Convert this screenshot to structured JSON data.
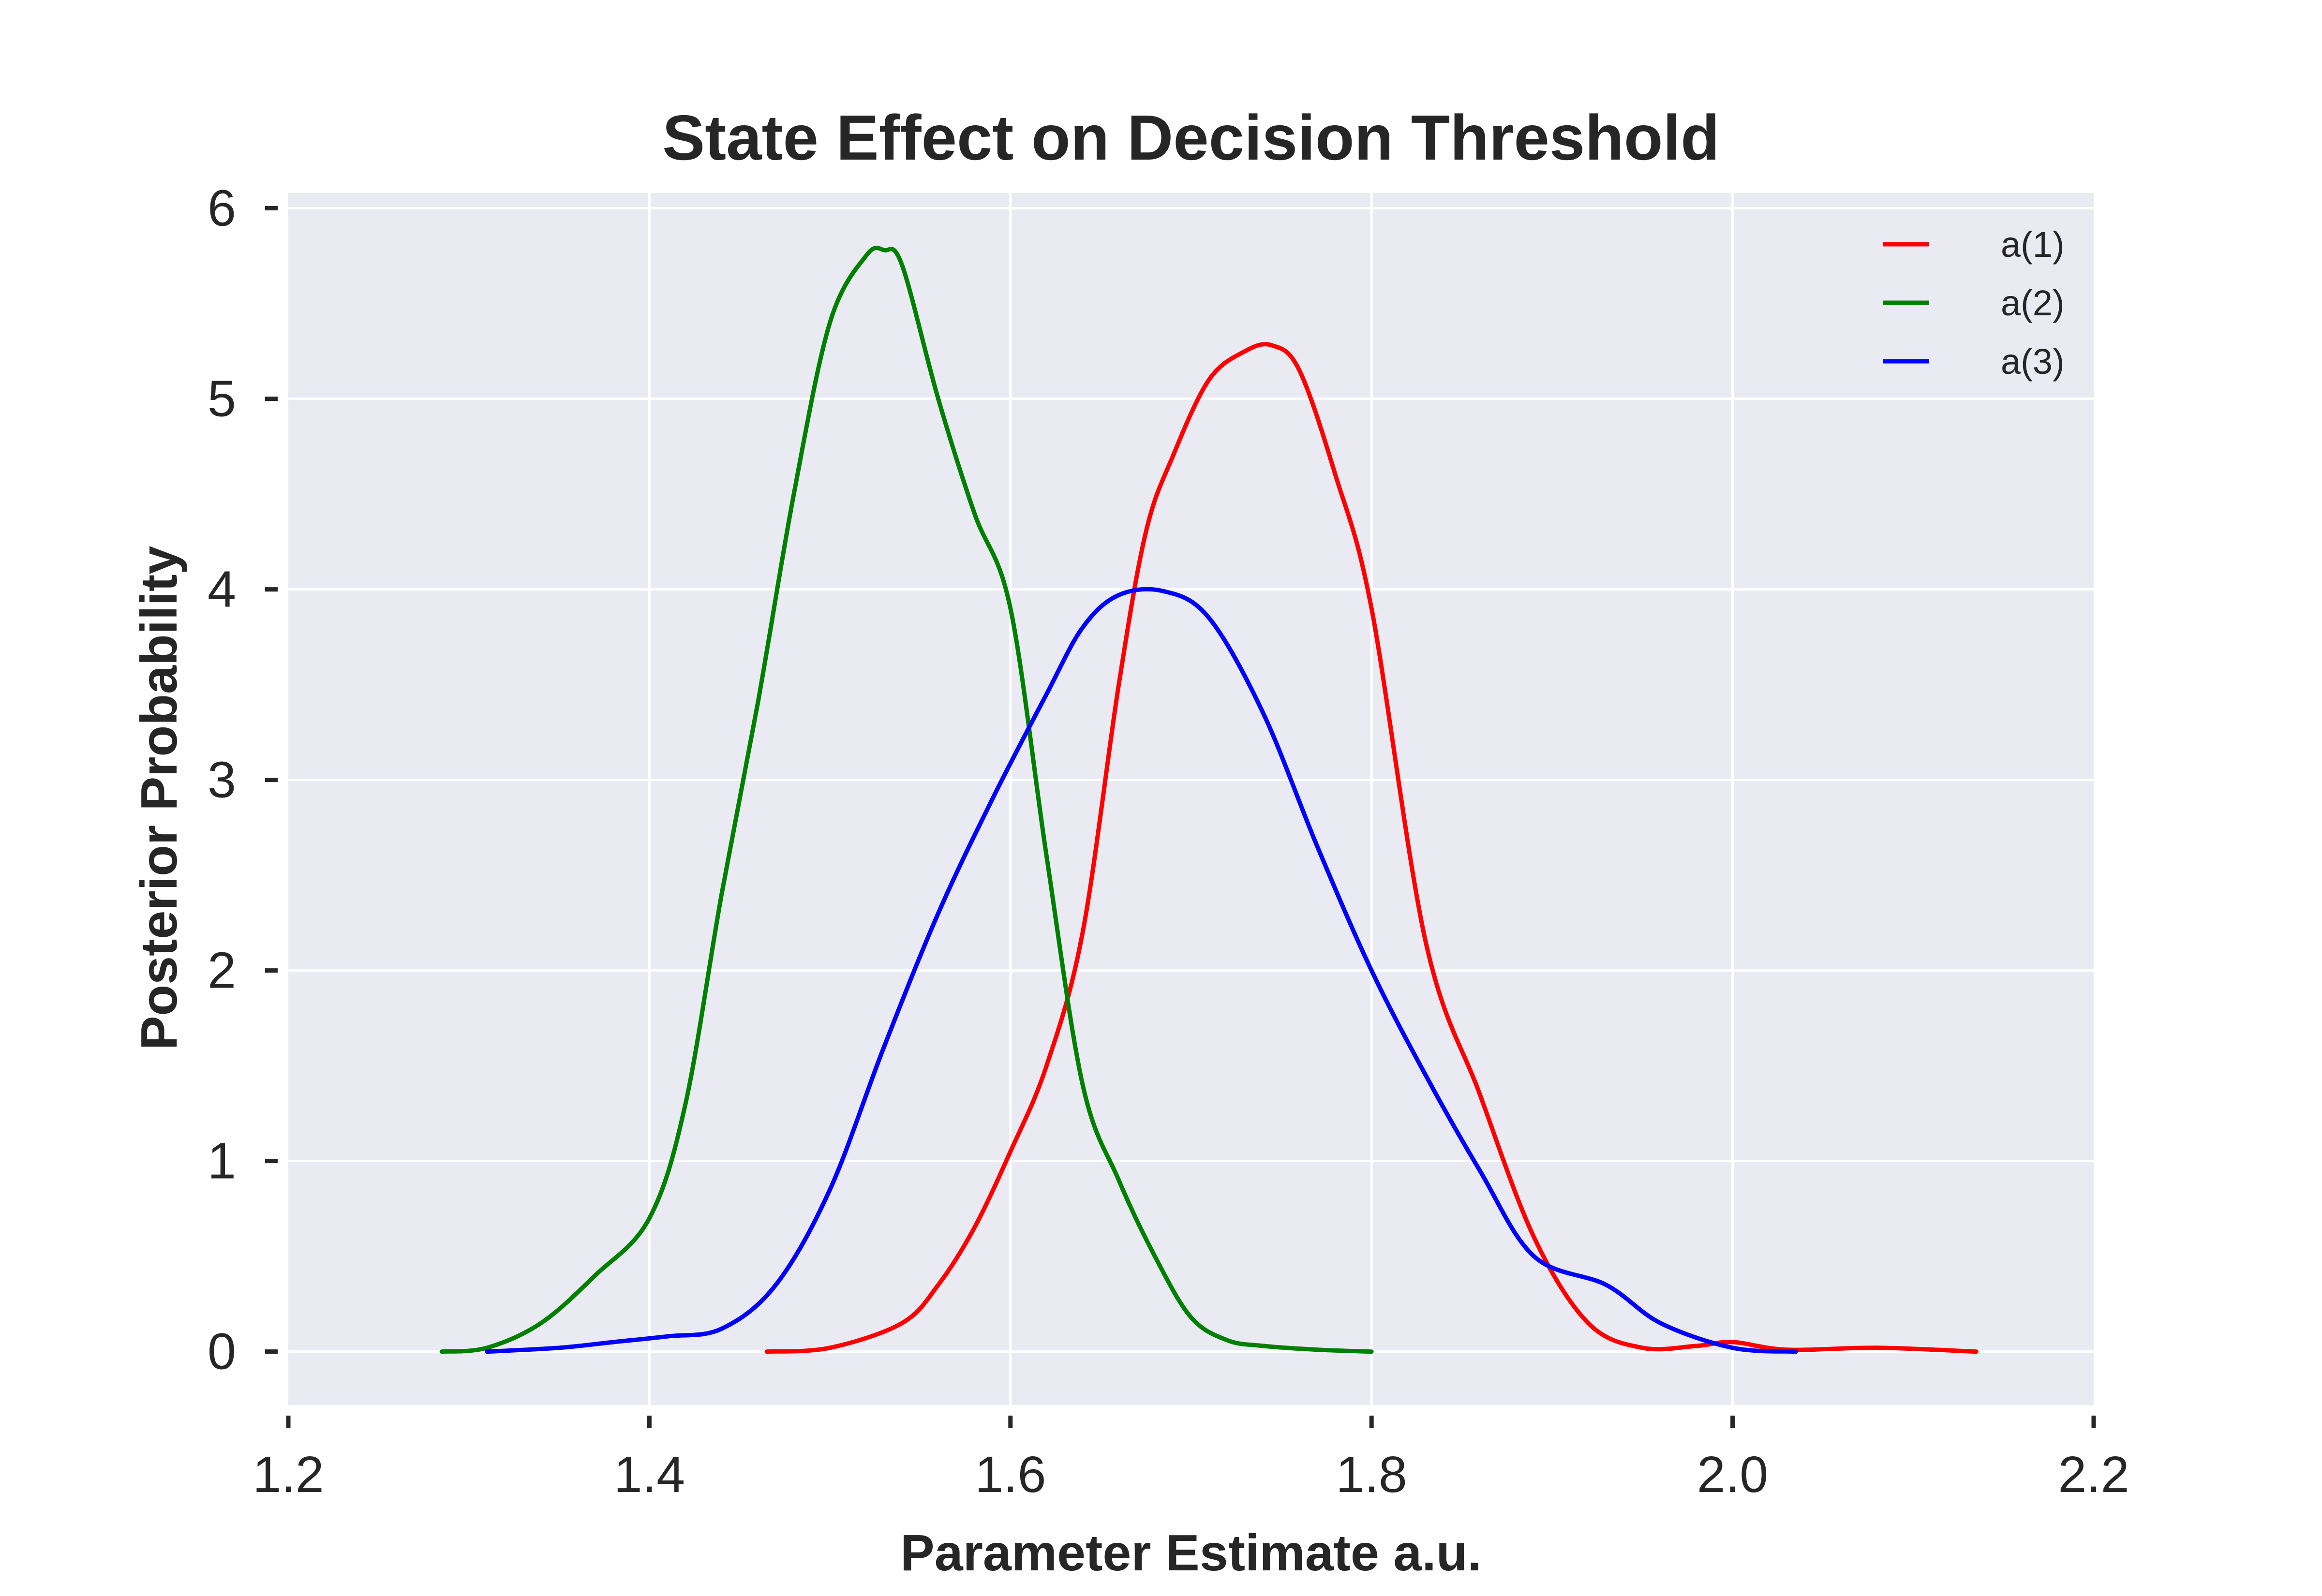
{
  "chart_data": {
    "type": "line",
    "title": "State Effect on Decision Threshold",
    "xlabel": "Parameter Estimate a.u.",
    "ylabel": "Posterior Probability",
    "xlim": [
      1.2,
      2.2
    ],
    "ylim": [
      -0.28,
      6.08
    ],
    "xticks": [
      1.2,
      1.4,
      1.6,
      1.8,
      2.0,
      2.2
    ],
    "xtick_labels": [
      "1.2",
      "1.4",
      "1.6",
      "1.8",
      "2.0",
      "2.2"
    ],
    "yticks": [
      0,
      1,
      2,
      3,
      4,
      5,
      6
    ],
    "ytick_labels": [
      "0",
      "1",
      "2",
      "3",
      "4",
      "5",
      "6"
    ],
    "grid": true,
    "legend_position": "top-right",
    "colors": {
      "background": "#eaeaf2",
      "grid": "#ffffff",
      "text": "#262626"
    },
    "series": [
      {
        "name": "a(1)",
        "color": "#ff0000",
        "x": [
          1.465,
          1.5,
          1.54,
          1.56,
          1.58,
          1.6,
          1.62,
          1.64,
          1.66,
          1.675,
          1.69,
          1.71,
          1.73,
          1.745,
          1.76,
          1.78,
          1.8,
          1.83,
          1.86,
          1.89,
          1.92,
          1.95,
          1.98,
          2.0,
          2.03,
          2.08,
          2.135
        ],
        "y": [
          0.0,
          0.02,
          0.15,
          0.35,
          0.65,
          1.05,
          1.5,
          2.2,
          3.5,
          4.3,
          4.7,
          5.1,
          5.25,
          5.28,
          5.15,
          4.6,
          3.9,
          2.15,
          1.35,
          0.6,
          0.15,
          0.02,
          0.03,
          0.05,
          0.01,
          0.02,
          0.0
        ]
      },
      {
        "name": "a(2)",
        "color": "#008000",
        "x": [
          1.285,
          1.31,
          1.34,
          1.37,
          1.4,
          1.42,
          1.44,
          1.46,
          1.48,
          1.5,
          1.52,
          1.53,
          1.54,
          1.56,
          1.58,
          1.6,
          1.62,
          1.64,
          1.66,
          1.68,
          1.7,
          1.72,
          1.74,
          1.77,
          1.8
        ],
        "y": [
          0.0,
          0.02,
          0.15,
          0.4,
          0.7,
          1.3,
          2.4,
          3.4,
          4.5,
          5.4,
          5.75,
          5.78,
          5.7,
          5.0,
          4.4,
          3.9,
          2.6,
          1.4,
          0.9,
          0.5,
          0.18,
          0.06,
          0.03,
          0.01,
          0.0
        ]
      },
      {
        "name": "a(3)",
        "color": "#0000ff",
        "x": [
          1.31,
          1.35,
          1.38,
          1.41,
          1.44,
          1.47,
          1.5,
          1.53,
          1.56,
          1.59,
          1.62,
          1.64,
          1.66,
          1.685,
          1.71,
          1.74,
          1.77,
          1.8,
          1.83,
          1.86,
          1.89,
          1.93,
          1.96,
          2.0,
          2.035
        ],
        "y": [
          0.0,
          0.02,
          0.05,
          0.08,
          0.12,
          0.35,
          0.85,
          1.6,
          2.3,
          2.9,
          3.45,
          3.8,
          3.97,
          3.99,
          3.85,
          3.35,
          2.65,
          2.0,
          1.45,
          0.95,
          0.5,
          0.35,
          0.15,
          0.02,
          0.0
        ]
      }
    ]
  }
}
